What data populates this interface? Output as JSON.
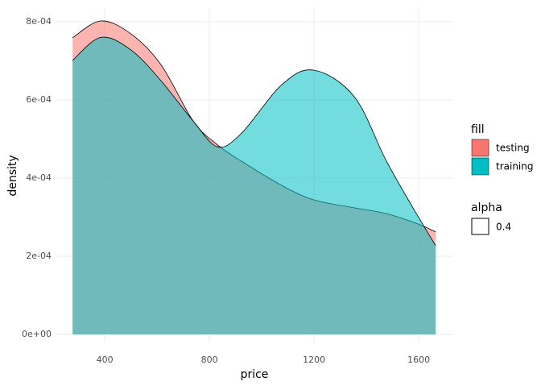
{
  "chart_data": {
    "type": "density",
    "x_label": "price",
    "y_label": "density",
    "x": [
      277,
      385,
      500,
      615,
      738,
      831,
      923,
      1077,
      1200,
      1354,
      1477,
      1600,
      1665
    ],
    "series": [
      {
        "name": "testing",
        "color": "#F8766D",
        "values": [
          0.000759,
          0.000802,
          0.000769,
          0.00069,
          0.000546,
          0.000485,
          0.000443,
          0.000381,
          0.000344,
          0.000324,
          0.000309,
          0.000282,
          0.000262
        ]
      },
      {
        "name": "training",
        "color": "#00BFC4",
        "values": [
          0.000701,
          0.00076,
          0.000728,
          0.000649,
          0.000546,
          0.00048,
          0.000515,
          0.000639,
          0.000676,
          0.000608,
          0.000443,
          0.000299,
          0.000227
        ]
      }
    ],
    "xlim": [
      215,
      1732
    ],
    "xticks": [
      400,
      800,
      1200,
      1600
    ],
    "ylim": [
      -2.06e-05,
      0.000835
    ],
    "yticks": [
      {
        "value": 0,
        "label": "0e+00"
      },
      {
        "value": 0.0002,
        "label": "2e-04"
      },
      {
        "value": 0.0004,
        "label": "4e-04"
      },
      {
        "value": 0.0006,
        "label": "6e-04"
      },
      {
        "value": 0.0008,
        "label": "8e-04"
      }
    ],
    "grid": true,
    "legend_title": "fill",
    "alpha_legend": {
      "title": "alpha",
      "label": "0.4"
    }
  }
}
